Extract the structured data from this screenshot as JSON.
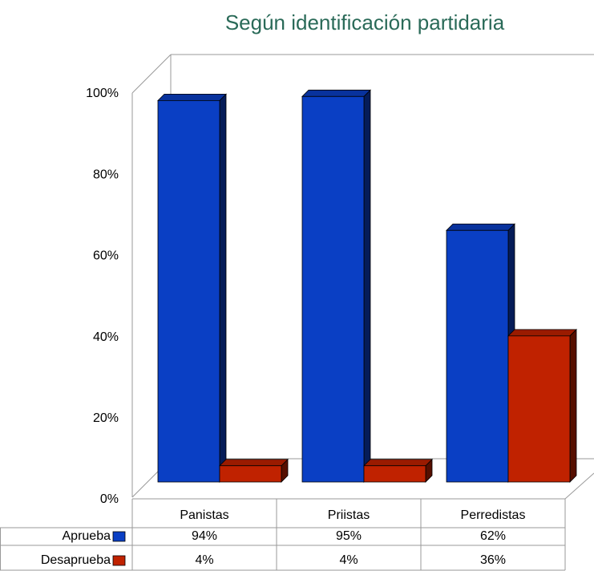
{
  "chart_data": {
    "type": "bar",
    "title": "Según identificación partidaria",
    "categories": [
      "Panistas",
      "Priistas",
      "Perredistas"
    ],
    "series": [
      {
        "name": "Aprueba",
        "color": "#0a3fc4",
        "values": [
          94,
          95,
          62
        ],
        "value_labels": [
          "94%",
          "95%",
          "62%"
        ]
      },
      {
        "name": "Desaprueba",
        "color": "#c02200",
        "values": [
          4,
          4,
          36
        ],
        "value_labels": [
          "4%",
          "4%",
          "36%"
        ]
      }
    ],
    "ylim": [
      0,
      100
    ],
    "yticks": [
      {
        "value": 0,
        "label": "0%"
      },
      {
        "value": 20,
        "label": "20%"
      },
      {
        "value": 40,
        "label": "40%"
      },
      {
        "value": 60,
        "label": "60%"
      },
      {
        "value": 80,
        "label": "80%"
      },
      {
        "value": 100,
        "label": "100%"
      }
    ]
  }
}
